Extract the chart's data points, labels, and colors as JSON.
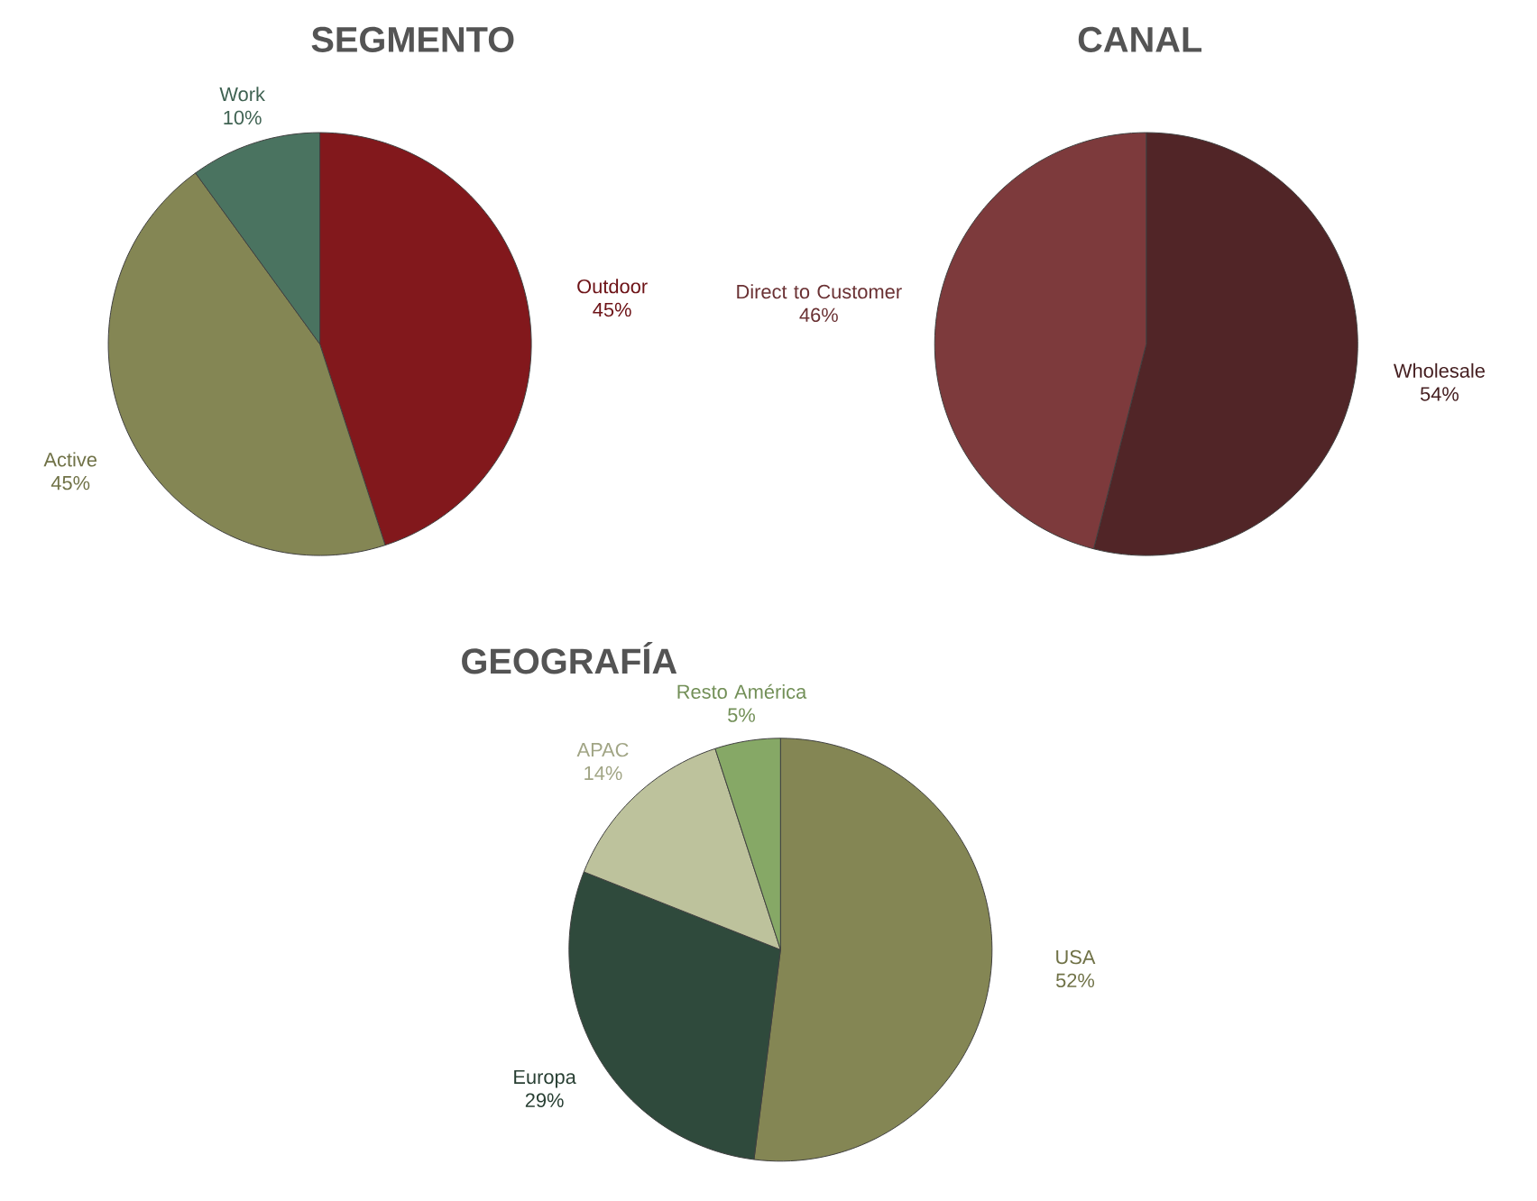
{
  "chart_data": [
    {
      "type": "pie",
      "title": "SEGMENTO",
      "categories": [
        "Outdoor",
        "Active",
        "Work"
      ],
      "values": [
        45,
        45,
        10
      ],
      "value_labels": [
        "45%",
        "45%",
        "10%"
      ],
      "colors": [
        "#82181c",
        "#848654",
        "#4a7360"
      ]
    },
    {
      "type": "pie",
      "title": "CANAL",
      "categories": [
        "Wholesale",
        "Direct to Customer"
      ],
      "values": [
        54,
        46
      ],
      "value_labels": [
        "54%",
        "46%"
      ],
      "colors": [
        "#512527",
        "#7d3a3c"
      ]
    },
    {
      "type": "pie",
      "title": "GEOGRAFÍA",
      "categories": [
        "USA",
        "Europa",
        "APAC",
        "Resto América"
      ],
      "values": [
        52,
        29,
        14,
        5
      ],
      "value_labels": [
        "52%",
        "29%",
        "14%",
        "5%"
      ],
      "colors": [
        "#848654",
        "#2f4a3c",
        "#bdc29c",
        "#86a866"
      ]
    }
  ]
}
